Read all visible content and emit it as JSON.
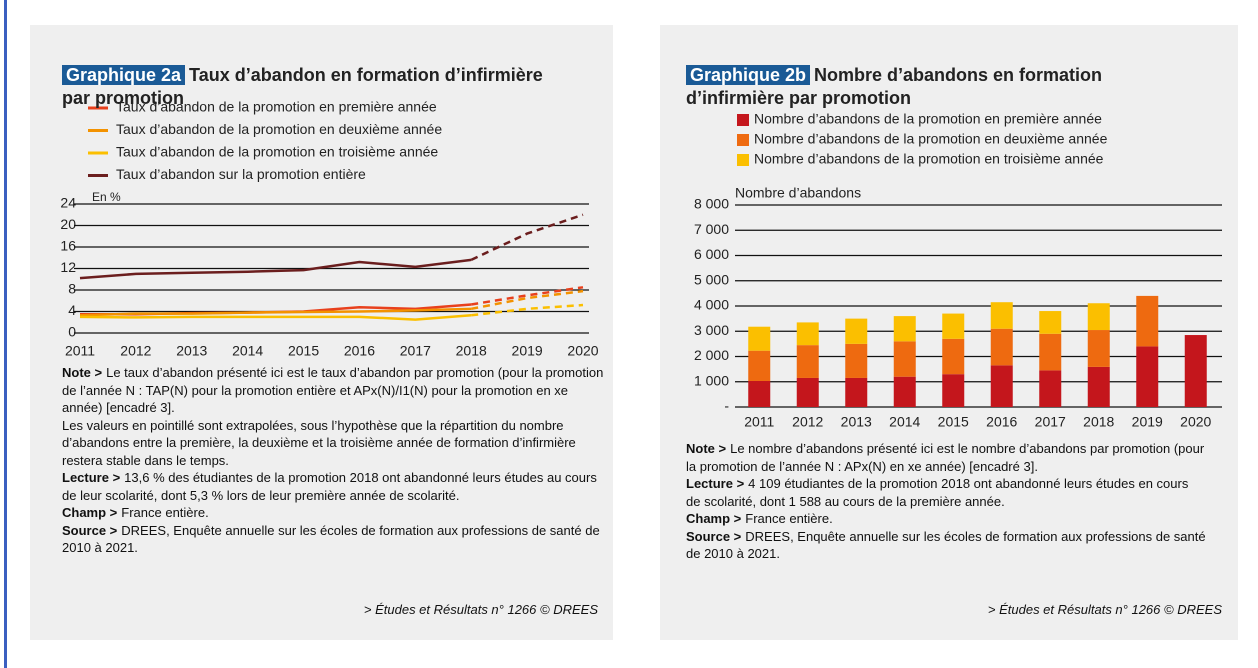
{
  "chart_data": [
    {
      "type": "line",
      "tag": "Graphique 2a",
      "title": "Taux d’abandon en formation d’infirmière par promotion",
      "y_label": "En %",
      "x": [
        2011,
        2012,
        2013,
        2014,
        2015,
        2016,
        2017,
        2018,
        2019,
        2020
      ],
      "xlim": [
        2011,
        2020
      ],
      "xticks": [
        2011,
        2012,
        2013,
        2014,
        2015,
        2016,
        2017,
        2018,
        2019,
        2020
      ],
      "ylim": [
        0,
        24
      ],
      "yticks": [
        0,
        4,
        8,
        12,
        16,
        20,
        24
      ],
      "grid": true,
      "extrapolated_from": 2018,
      "series": [
        {
          "name": "Taux d’abandon de la promotion en première année",
          "color": "#e8401c",
          "values": [
            3.5,
            3.5,
            3.7,
            3.8,
            4.0,
            4.8,
            4.5,
            5.3,
            7.0,
            8.5
          ]
        },
        {
          "name": "Taux d’abandon de la promotion en deuxième année",
          "color": "#f39200",
          "values": [
            3.3,
            3.6,
            3.6,
            3.8,
            3.9,
            4.0,
            4.2,
            4.5,
            6.5,
            7.8
          ]
        },
        {
          "name": "Taux d’abandon de la promotion en troisième année",
          "color": "#fbbf00",
          "values": [
            3.0,
            2.9,
            3.0,
            3.0,
            3.0,
            3.0,
            2.5,
            3.3,
            4.5,
            5.2
          ]
        },
        {
          "name": "Taux d’abandon sur la promotion entière",
          "color": "#6b1e1e",
          "values": [
            10.2,
            11.0,
            11.2,
            11.4,
            11.7,
            13.2,
            12.3,
            13.6,
            18.5,
            22.0
          ]
        }
      ],
      "notes": [
        {
          "label": "Note >",
          "text": "Le taux d’abandon présenté ici est le taux d’abandon par promotion (pour la promotion de l’année N : TAP(N) pour la promotion entière et APx(N)/I1(N) pour la promotion en xe année) [encadré 3]."
        },
        {
          "text": "Les valeurs en pointillé sont extrapolées, sous l’hypothèse que la répartition du nombre d’abandons entre la première, la deuxième et la troisième année de formation d’infirmière restera stable dans le temps."
        },
        {
          "label": "Lecture >",
          "text": "13,6 % des étudiantes de la promotion 2018 ont abandonné leurs études au cours de leur scolarité, dont 5,3 % lors de leur première année de scolarité."
        },
        {
          "label": "Champ >",
          "text": "France entière."
        },
        {
          "label": "Source >",
          "text": "DREES, Enquête annuelle sur les écoles de formation aux professions de santé de 2010 à 2021."
        }
      ],
      "credit": "> Études et Résultats n° 1266 © DREES"
    },
    {
      "type": "stacked_bar",
      "tag": "Graphique 2b",
      "title": "Nombre d’abandons en formation d’infirmière par promotion",
      "y_label": "Nombre d’abandons",
      "categories": [
        "2011",
        "2012",
        "2013",
        "2014",
        "2015",
        "2016",
        "2017",
        "2018",
        "2019",
        "2020"
      ],
      "ylim": [
        0,
        8000
      ],
      "yticks": [
        {
          "value": 0,
          "label": "-"
        },
        {
          "value": 1000,
          "label": "1 000"
        },
        {
          "value": 2000,
          "label": "2 000"
        },
        {
          "value": 3000,
          "label": "3 000"
        },
        {
          "value": 4000,
          "label": "4 000"
        },
        {
          "value": 5000,
          "label": "5 000"
        },
        {
          "value": 6000,
          "label": "6 000"
        },
        {
          "value": 7000,
          "label": "7 000"
        },
        {
          "value": 8000,
          "label": "8 000"
        }
      ],
      "grid": true,
      "series": [
        {
          "name": "Nombre d’abandons de la promotion en première année",
          "color": "#c4161c",
          "values": [
            1030,
            1150,
            1150,
            1200,
            1300,
            1650,
            1450,
            1588,
            2400,
            2850
          ]
        },
        {
          "name": "Nombre d’abandons de la promotion en deuxième année",
          "color": "#ee6a10",
          "values": [
            1200,
            1300,
            1350,
            1400,
            1400,
            1450,
            1450,
            1460,
            2000,
            null
          ]
        },
        {
          "name": "Nombre d’abandons de la promotion en troisième année",
          "color": "#fbbf00",
          "values": [
            950,
            900,
            1000,
            1000,
            1000,
            1050,
            900,
            1061,
            null,
            null
          ]
        }
      ],
      "notes": [
        {
          "label": "Note >",
          "text": "Le nombre d’abandons présenté ici est le nombre d’abandons par promotion (pour la promotion de l’année N : APx(N) en xe année) [encadré 3]."
        },
        {
          "label": "Lecture >",
          "text": "4 109 étudiantes de la promotion 2018 ont abandonné leurs études en cours de scolarité, dont 1 588 au cours de la première année."
        },
        {
          "label": "Champ >",
          "text": "France entière."
        },
        {
          "label": "Source >",
          "text": "DREES, Enquête annuelle sur les écoles de formation aux professions de santé de 2010 à 2021."
        }
      ],
      "credit": "> Études et Résultats n° 1266 © DREES"
    }
  ]
}
